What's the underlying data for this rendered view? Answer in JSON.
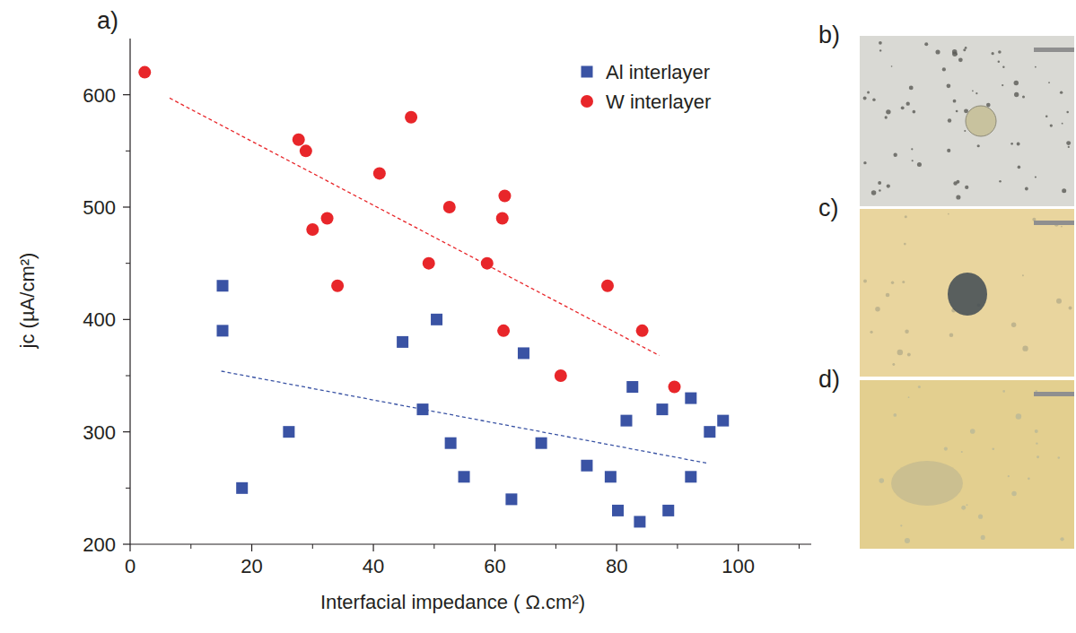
{
  "chart_data": {
    "type": "scatter",
    "panel_label": "a)",
    "x_label": "Interfacial impedance ( Ω.cm²)",
    "y_label": "jc (µA/cm²)",
    "xlim": [
      0,
      112
    ],
    "xticks": [
      0,
      20,
      40,
      60,
      80,
      100
    ],
    "ylim": [
      200,
      650
    ],
    "yticks": [
      200,
      300,
      400,
      500,
      600
    ],
    "legend": "top-right",
    "series": [
      {
        "name": "Al interlayer",
        "color": "#3a53a4",
        "marker": "square",
        "x": [
          15.2,
          15.2,
          18.4,
          26.1,
          44.8,
          48.1,
          50.4,
          52.7,
          54.9,
          62.7,
          64.7,
          67.6,
          75.1,
          79.0,
          80.2,
          81.6,
          82.6,
          83.8,
          87.5,
          88.5,
          92.2,
          92.2,
          95.3,
          97.5
        ],
        "values": [
          430,
          390,
          250,
          300,
          380,
          320,
          400,
          290,
          260,
          240,
          370,
          290,
          270,
          260,
          230,
          310,
          340,
          220,
          320,
          230,
          330,
          260,
          300,
          310
        ]
      },
      {
        "name": "W interlayer",
        "color": "#e8262a",
        "marker": "circle",
        "x": [
          2.4,
          27.7,
          28.9,
          30.0,
          32.4,
          34.1,
          41.0,
          46.2,
          49.1,
          52.5,
          58.7,
          61.2,
          61.6,
          61.4,
          70.8,
          78.5,
          84.2,
          89.5
        ],
        "values": [
          620,
          560,
          550,
          480,
          490,
          430,
          530,
          580,
          450,
          500,
          450,
          490,
          510,
          390,
          350,
          430,
          390,
          340
        ]
      },
      {
        "type": "line",
        "line_style": "dashed",
        "color": "#3a53a4",
        "x": [
          15,
          95
        ],
        "values": [
          354,
          272
        ]
      },
      {
        "type": "line",
        "line_style": "dashed",
        "color": "#e8262a",
        "x": [
          6.5,
          87
        ],
        "values": [
          597,
          368
        ]
      }
    ]
  },
  "images": [
    {
      "label": "b)"
    },
    {
      "label": "c)"
    },
    {
      "label": "d)"
    }
  ]
}
